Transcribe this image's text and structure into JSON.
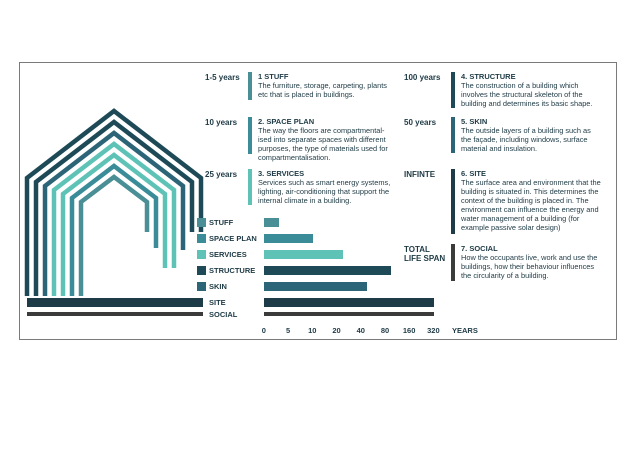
{
  "colors": {
    "stuff": "#4a8e96",
    "space_plan": "#3a8c98",
    "services": "#5ec3b6",
    "structure": "#1e4a58",
    "skin": "#2c6478",
    "site": "#1d3c48",
    "social": "#3b3b3b"
  },
  "layers_left": [
    {
      "duration": "1-5 years",
      "title": "1 STUFF",
      "description": "The furniture, storage, carpeting, plants etc that is placed in buildings."
    },
    {
      "duration": "10 years",
      "title": "2. SPACE PLAN",
      "description": "The way the floors are compartmental-ised into separate spaces with different purposes, the type of materials used for compartmentalisation."
    },
    {
      "duration": "25 years",
      "title": "3. SERVICES",
      "description": "Services such as smart energy systems, lighting, air-conditioning that support the internal climate in a building."
    }
  ],
  "layers_right": [
    {
      "duration": "100 years",
      "title": "4. STRUCTURE",
      "description": "The construction of a building which involves the structural skeleton of the building and determines its basic shape."
    },
    {
      "duration": "50 years",
      "title": "5. SKIN",
      "description": "The outside layers of a building such as the façade, including windows, surface material and insulation."
    },
    {
      "duration": "INFINTE",
      "title": "6. SITE",
      "description": "The surface area and environment that the building is situated in.  This determines the context of the building is placed in. The environment can influence the energy and water management of a building (for example passive solar design)"
    },
    {
      "duration": "TOTAL LIFE SPAN",
      "title": "7. SOCIAL",
      "description": "How the occupants live, work and use the buildings, how their behaviour influences the circularity of a building."
    }
  ],
  "chart_data": {
    "type": "bar",
    "orientation": "horizontal",
    "categories": [
      "STUFF",
      "SPACE PLAN",
      "SERVICES",
      "STRUCTURE",
      "SKIN",
      "SITE",
      "SOCIAL"
    ],
    "values": [
      3,
      10,
      25,
      100,
      50,
      320,
      320
    ],
    "x_ticks": [
      "0",
      "5",
      "10",
      "20",
      "40",
      "80",
      "160",
      "320"
    ],
    "x_tick_values": [
      0,
      5,
      10,
      20,
      40,
      80,
      160,
      320
    ],
    "xlabel": "YEARS",
    "x_scale": "log-like doubling"
  }
}
